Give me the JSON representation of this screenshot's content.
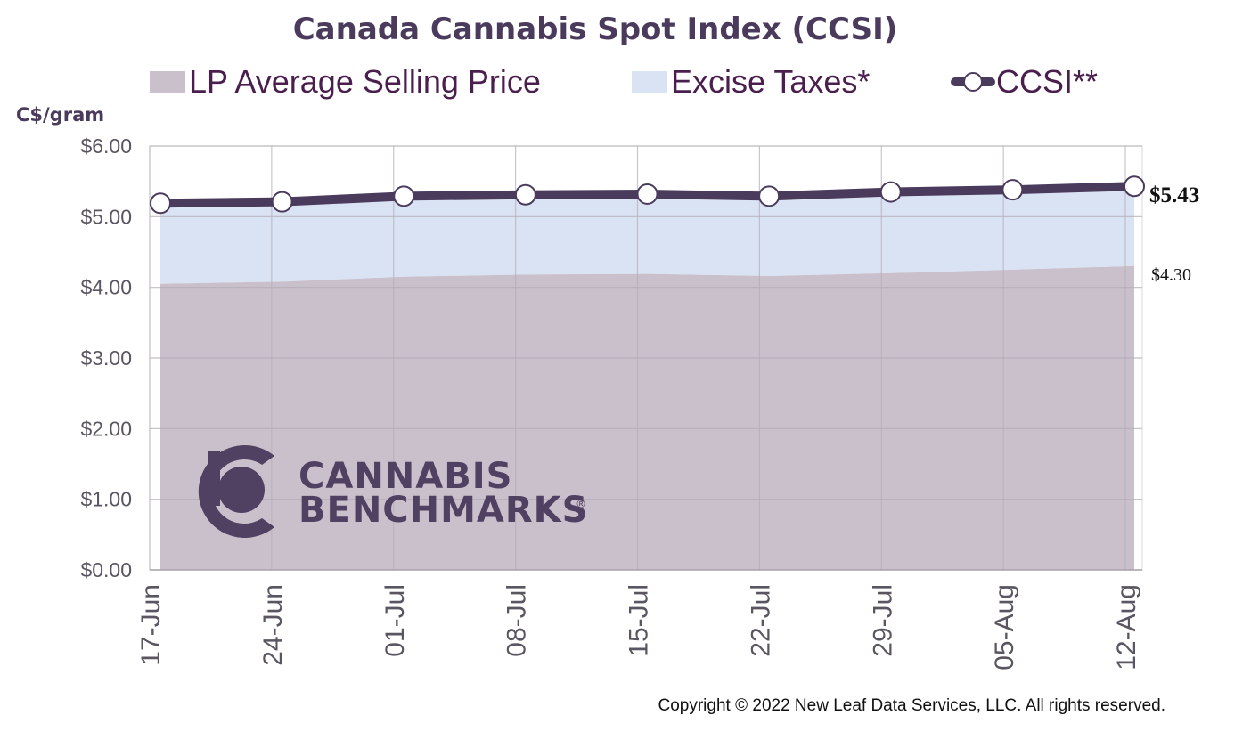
{
  "chart_data": {
    "type": "area",
    "title": "Canada Cannabis Spot Index (CCSI)",
    "ylabel": "C$/gram",
    "xlabel": "",
    "categories": [
      "17-Jun",
      "24-Jun",
      "01-Jul",
      "08-Jul",
      "15-Jul",
      "22-Jul",
      "29-Jul",
      "05-Aug",
      "12-Aug"
    ],
    "ylim": [
      0,
      6
    ],
    "yticks": [
      "$0.00",
      "$1.00",
      "$2.00",
      "$3.00",
      "$4.00",
      "$5.00",
      "$6.00"
    ],
    "ytick_values": [
      0,
      1,
      2,
      3,
      4,
      5,
      6
    ],
    "grid": true,
    "legend_position": "top",
    "series": [
      {
        "name": "LP Average Selling Price",
        "kind": "area",
        "color": "#c9c0cc",
        "values": [
          4.05,
          4.08,
          4.15,
          4.18,
          4.19,
          4.16,
          4.2,
          4.25,
          4.3
        ]
      },
      {
        "name": "Excise Taxes*",
        "kind": "stacked-area",
        "color": "#dae3f4",
        "values": [
          1.14,
          1.13,
          1.14,
          1.13,
          1.13,
          1.13,
          1.15,
          1.13,
          1.13
        ]
      },
      {
        "name": "CCSI**",
        "kind": "line",
        "color": "#4a3a5c",
        "values": [
          5.19,
          5.21,
          5.29,
          5.31,
          5.32,
          5.29,
          5.35,
          5.38,
          5.43
        ]
      }
    ],
    "end_labels": {
      "ccsi": "$5.43",
      "lp": "$4.30"
    }
  },
  "watermark": {
    "line1": "CANNABIS",
    "line2": "BENCHMARKS",
    "mark": "®"
  },
  "copyright": "Copyright © 2022 New Leaf Data Services, LLC. All rights reserved."
}
